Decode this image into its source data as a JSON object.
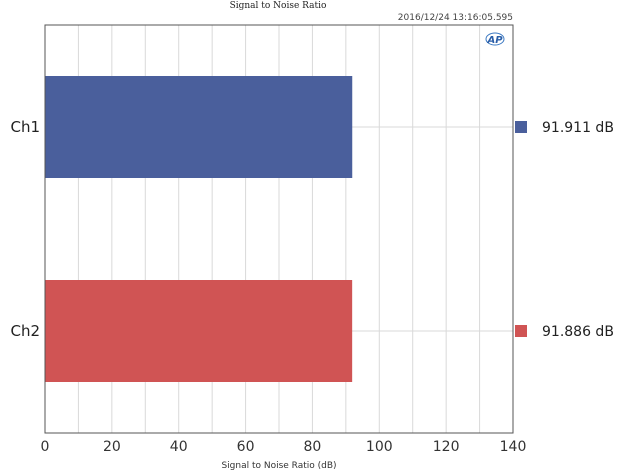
{
  "chart_data": {
    "type": "bar",
    "orientation": "horizontal",
    "title": "Signal to Noise Ratio",
    "timestamp": "2016/12/24 13:16:05.595",
    "logo": "AP",
    "xlabel": "Signal to Noise Ratio (dB)",
    "xlim": [
      0,
      140
    ],
    "xticks": [
      0,
      20,
      40,
      60,
      80,
      100,
      120,
      140
    ],
    "grid": true,
    "categories": [
      "Ch1",
      "Ch2"
    ],
    "values": [
      91.911,
      91.886
    ],
    "colors": [
      "#4a5f9c",
      "#d05454"
    ],
    "value_labels": [
      "91.911 dB",
      "91.886 dB"
    ],
    "legend_position": "right"
  }
}
